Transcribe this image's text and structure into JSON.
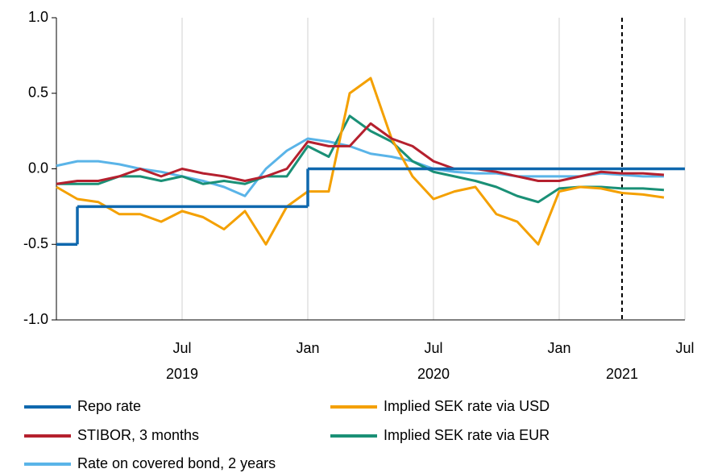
{
  "chart_data": {
    "type": "line",
    "x": [
      "2019-01",
      "2019-02",
      "2019-03",
      "2019-04",
      "2019-05",
      "2019-06",
      "2019-07",
      "2019-08",
      "2019-09",
      "2019-10",
      "2019-11",
      "2019-12",
      "2020-01",
      "2020-02",
      "2020-03",
      "2020-04",
      "2020-05",
      "2020-06",
      "2020-07",
      "2020-08",
      "2020-09",
      "2020-10",
      "2020-11",
      "2020-12",
      "2021-01",
      "2021-02",
      "2021-03",
      "2021-04",
      "2021-05",
      "2021-06"
    ],
    "xlim": [
      "2019-01",
      "2021-07"
    ],
    "xticks": [
      {
        "value": "2019-07",
        "label": "Jul"
      },
      {
        "value": "2020-01",
        "label": "Jan"
      },
      {
        "value": "2020-07",
        "label": "Jul"
      },
      {
        "value": "2021-01",
        "label": "Jan"
      },
      {
        "value": "2021-07",
        "label": "Jul"
      }
    ],
    "years": [
      "2019",
      "2020",
      "2021"
    ],
    "ylim": [
      -1,
      1
    ],
    "yticks": [
      {
        "value": 1,
        "label": "1.0"
      },
      {
        "value": 0.5,
        "label": "0.5"
      },
      {
        "value": 0,
        "label": "0.0"
      },
      {
        "value": -0.5,
        "label": "-0.5"
      },
      {
        "value": -1,
        "label": "-1.0"
      }
    ],
    "grid": "x",
    "dashed_vline": "2021-04",
    "series": [
      {
        "name": "Repo rate",
        "color": "#0f68ae",
        "step": true,
        "values": [
          -0.5,
          -0.25,
          -0.25,
          -0.25,
          -0.25,
          -0.25,
          -0.25,
          -0.25,
          -0.25,
          -0.25,
          -0.25,
          -0.25,
          0,
          0,
          0,
          0,
          0,
          0,
          0,
          0,
          0,
          0,
          0,
          0,
          0,
          0,
          0,
          0,
          0,
          0
        ]
      },
      {
        "name": "Implied SEK rate via USD",
        "color": "#f4a000",
        "values": [
          -0.12,
          -0.2,
          -0.22,
          -0.3,
          -0.3,
          -0.35,
          -0.28,
          -0.32,
          -0.4,
          -0.28,
          -0.5,
          -0.25,
          -0.15,
          -0.15,
          0.5,
          0.6,
          0.2,
          -0.05,
          -0.2,
          -0.15,
          -0.12,
          -0.3,
          -0.35,
          -0.5,
          -0.15,
          -0.12,
          -0.13,
          -0.16,
          -0.17,
          -0.19
        ]
      },
      {
        "name": "STIBOR, 3 months",
        "color": "#b5202e",
        "values": [
          -0.1,
          -0.08,
          -0.08,
          -0.05,
          0,
          -0.05,
          0,
          -0.03,
          -0.05,
          -0.08,
          -0.05,
          0,
          0.18,
          0.15,
          0.15,
          0.3,
          0.2,
          0.15,
          0.05,
          0,
          0,
          -0.02,
          -0.05,
          -0.08,
          -0.08,
          -0.05,
          -0.02,
          -0.03,
          -0.03,
          -0.04
        ]
      },
      {
        "name": "Implied SEK rate via EUR",
        "color": "#1a9076",
        "values": [
          -0.1,
          -0.1,
          -0.1,
          -0.05,
          -0.05,
          -0.08,
          -0.05,
          -0.1,
          -0.08,
          -0.1,
          -0.05,
          -0.05,
          0.15,
          0.08,
          0.35,
          0.25,
          0.18,
          0.05,
          -0.02,
          -0.05,
          -0.08,
          -0.12,
          -0.18,
          -0.22,
          -0.13,
          -0.12,
          -0.12,
          -0.13,
          -0.13,
          -0.14
        ]
      },
      {
        "name": "Rate on covered bond, 2 years",
        "color": "#5ab4e8",
        "values": [
          0.02,
          0.05,
          0.05,
          0.03,
          0,
          -0.02,
          -0.05,
          -0.08,
          -0.12,
          -0.18,
          0,
          0.12,
          0.2,
          0.18,
          0.15,
          0.1,
          0.08,
          0.05,
          0,
          -0.02,
          -0.03,
          -0.03,
          -0.05,
          -0.05,
          -0.05,
          -0.05,
          -0.03,
          -0.04,
          -0.05,
          -0.05
        ]
      }
    ]
  }
}
